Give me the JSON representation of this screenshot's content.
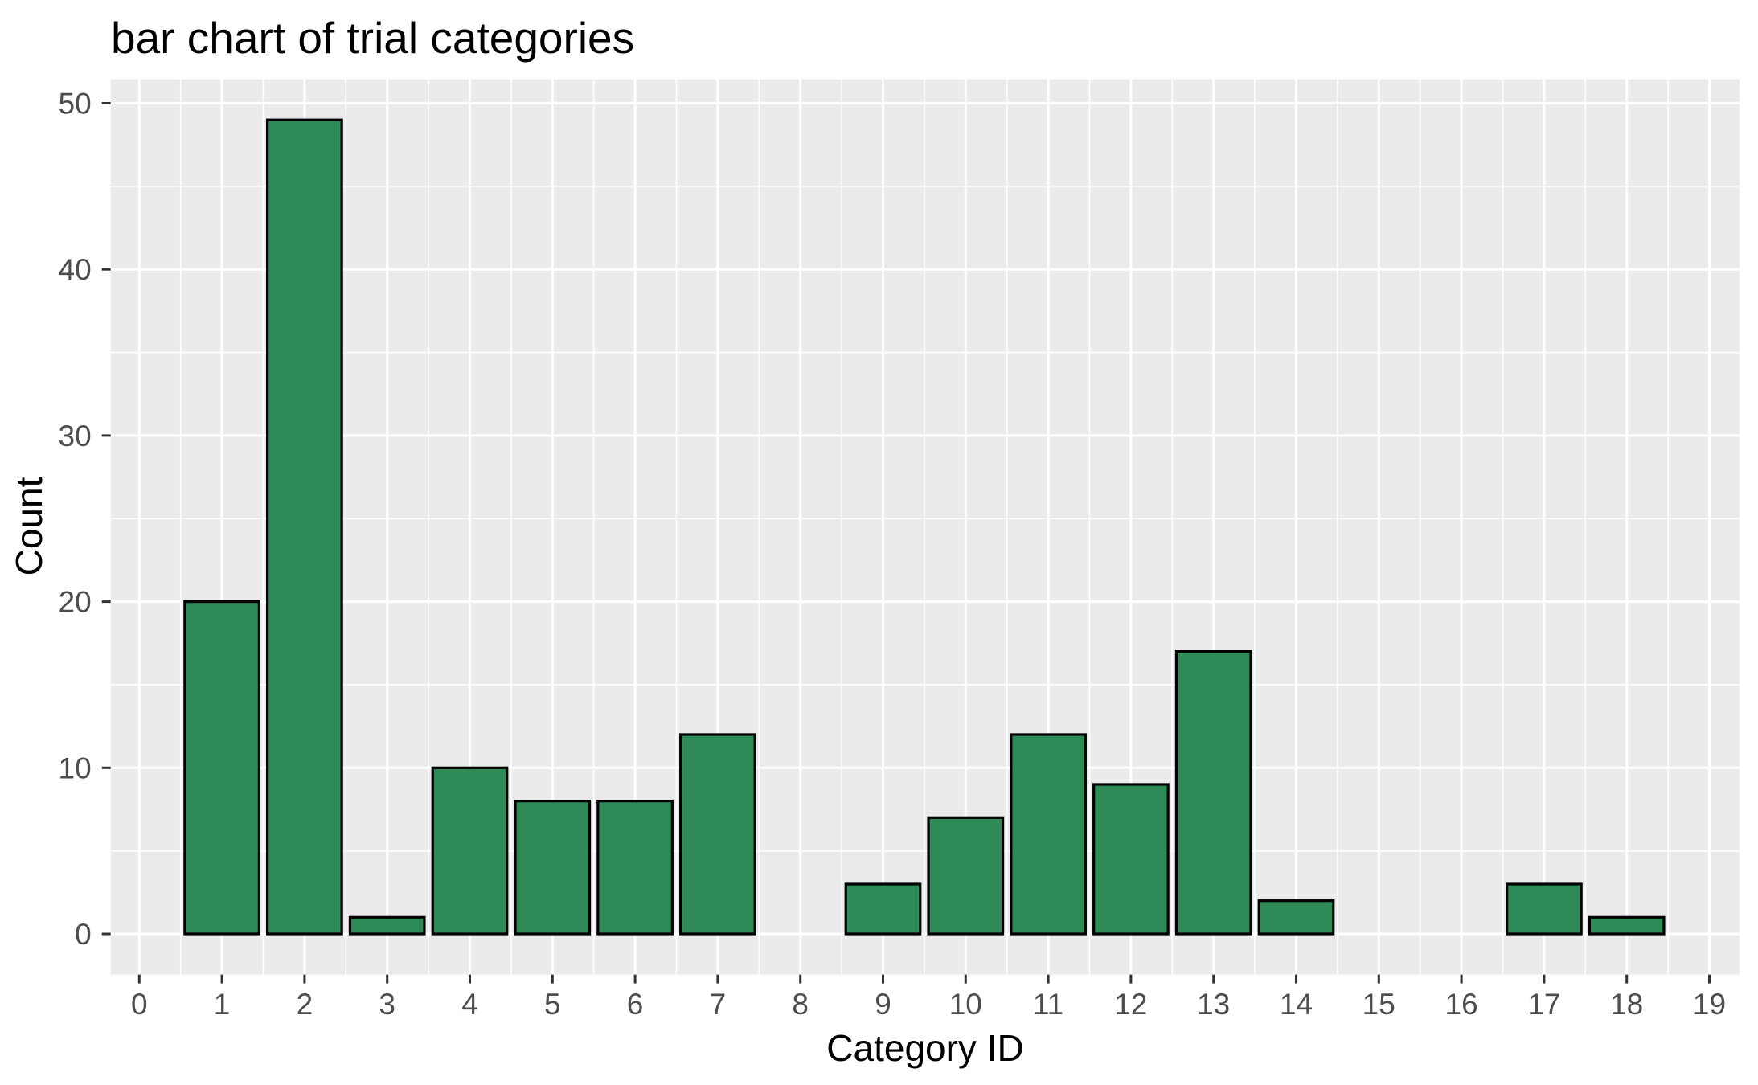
{
  "colors": {
    "page_background": "#FFFFFF",
    "panel_background": "#EBEBEB",
    "gridline": "#FFFFFF",
    "bar_fill": "#2E8B57",
    "bar_stroke": "#000000",
    "tick_mark": "#333333",
    "tick_label_text": "#4D4D4D",
    "title_text": "#000000"
  },
  "chart_data": {
    "type": "bar",
    "title": "bar chart of trial categories",
    "xlabel": "Category ID",
    "ylabel": "Count",
    "categories": [
      0,
      1,
      2,
      3,
      4,
      5,
      6,
      7,
      8,
      9,
      10,
      11,
      12,
      13,
      14,
      15,
      16,
      17,
      18,
      19
    ],
    "values": [
      0,
      20,
      49,
      1,
      10,
      8,
      8,
      12,
      0,
      3,
      7,
      12,
      9,
      17,
      2,
      0,
      0,
      3,
      1,
      0
    ],
    "x_ticks": [
      0,
      1,
      2,
      3,
      4,
      5,
      6,
      7,
      8,
      9,
      10,
      11,
      12,
      13,
      14,
      15,
      16,
      17,
      18,
      19
    ],
    "y_ticks": [
      0,
      10,
      20,
      30,
      40,
      50
    ],
    "y_minor_ticks": [
      5,
      15,
      25,
      35,
      45
    ],
    "ylim": [
      0,
      50
    ],
    "bar_width_fraction": 0.9,
    "grid": "white major and minor gridlines on gray panel",
    "legend": "none"
  }
}
